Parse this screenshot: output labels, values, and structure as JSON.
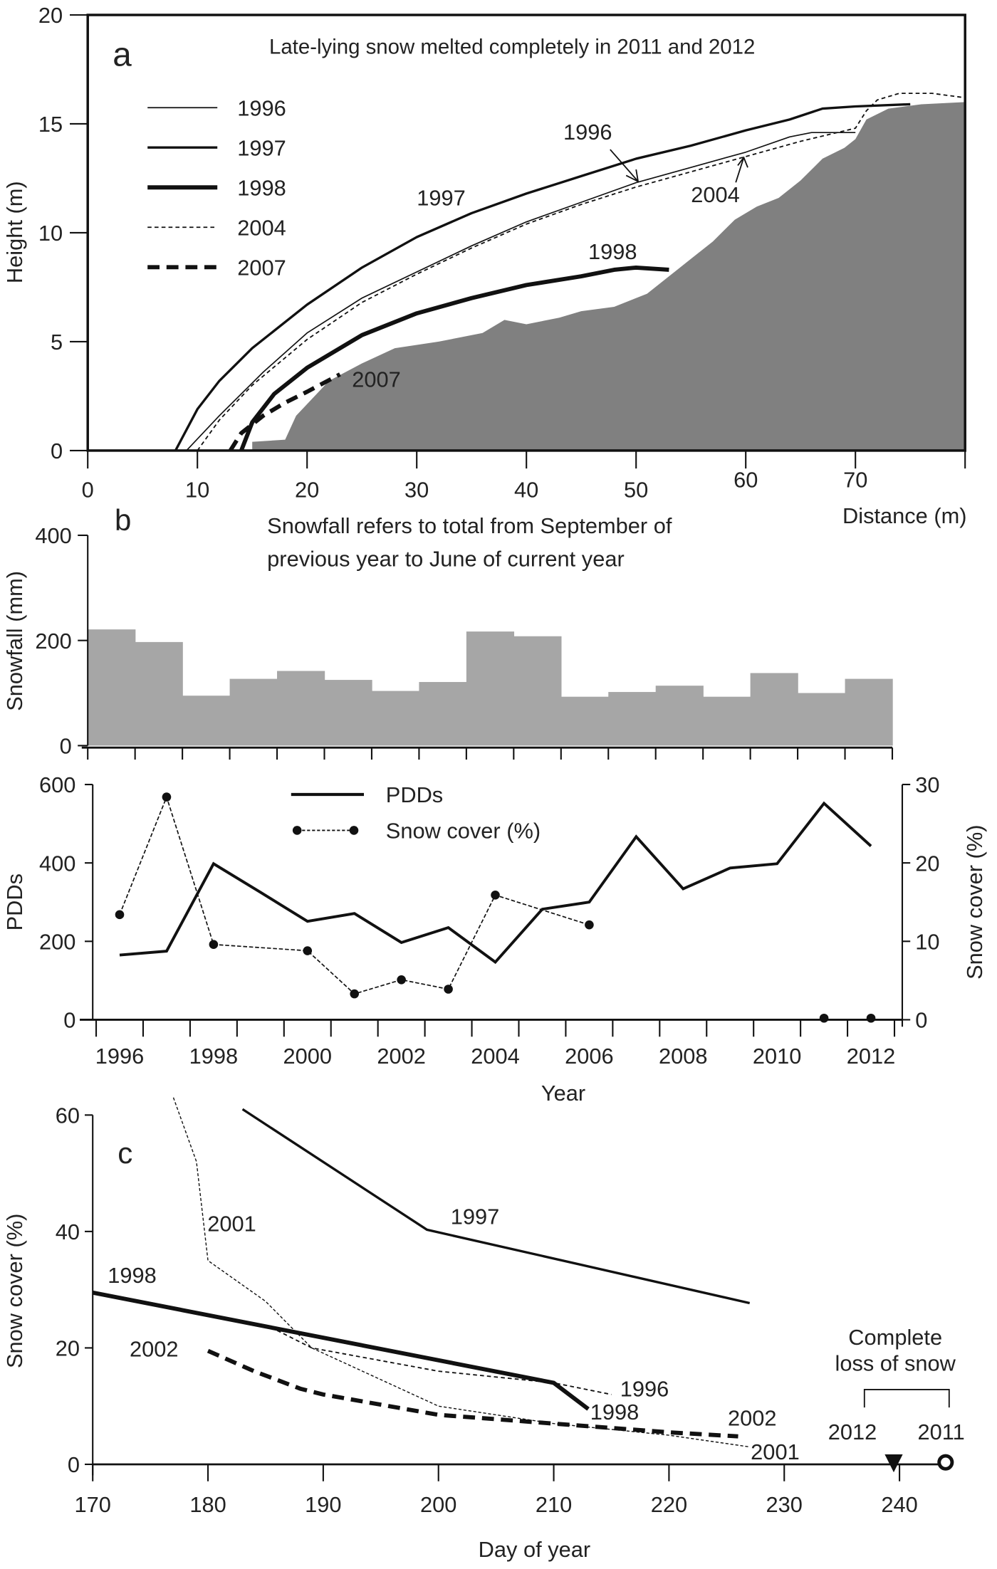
{
  "colors": {
    "ground": "#808080",
    "snowfall_bar": "#a6a6a6",
    "line": "#111111"
  },
  "chart_data": [
    {
      "type": "line",
      "panel_label": "a",
      "title": "Late-lying snow melted completely in 2011 and 2012",
      "xlabel": "Distance (m)",
      "ylabel": "Height (m)",
      "xlim": [
        0,
        80
      ],
      "ylim": [
        0,
        20
      ],
      "xticks": [
        "0",
        "10",
        "20",
        "30",
        "40",
        "50",
        "60",
        "70"
      ],
      "yticks": [
        "0",
        "5",
        "10",
        "15",
        "20"
      ],
      "legend_position": "top-left",
      "ground_profile": {
        "fill": "#808080",
        "points": [
          [
            15,
            0
          ],
          [
            15,
            0.4
          ],
          [
            18,
            0.5
          ],
          [
            19,
            1.6
          ],
          [
            22,
            3.2
          ],
          [
            25,
            4
          ],
          [
            28,
            4.7
          ],
          [
            32,
            5
          ],
          [
            36,
            5.4
          ],
          [
            38,
            6
          ],
          [
            40,
            5.8
          ],
          [
            43,
            6.1
          ],
          [
            45,
            6.4
          ],
          [
            48,
            6.6
          ],
          [
            51,
            7.2
          ],
          [
            53,
            8
          ],
          [
            55,
            8.8
          ],
          [
            57,
            9.6
          ],
          [
            59,
            10.6
          ],
          [
            61,
            11.2
          ],
          [
            63,
            11.6
          ],
          [
            65,
            12.4
          ],
          [
            67,
            13.4
          ],
          [
            69,
            13.9
          ],
          [
            70,
            14.3
          ],
          [
            71,
            15.2
          ],
          [
            73,
            15.7
          ],
          [
            76,
            15.9
          ],
          [
            80,
            16
          ],
          [
            80,
            0
          ]
        ]
      },
      "series": [
        {
          "name": "1996",
          "style": "thin",
          "points": [
            [
              9,
              0
            ],
            [
              12,
              1.6
            ],
            [
              16,
              3.6
            ],
            [
              20,
              5.4
            ],
            [
              25,
              7
            ],
            [
              30,
              8.2
            ],
            [
              35,
              9.4
            ],
            [
              40,
              10.5
            ],
            [
              45,
              11.4
            ],
            [
              50,
              12.3
            ],
            [
              55,
              13
            ],
            [
              60,
              13.7
            ],
            [
              64,
              14.4
            ],
            [
              66,
              14.6
            ],
            [
              70,
              14.6
            ]
          ]
        },
        {
          "name": "1997",
          "style": "solid",
          "points": [
            [
              8,
              0
            ],
            [
              10,
              1.9
            ],
            [
              12,
              3.2
            ],
            [
              15,
              4.7
            ],
            [
              20,
              6.7
            ],
            [
              25,
              8.4
            ],
            [
              30,
              9.8
            ],
            [
              35,
              10.9
            ],
            [
              40,
              11.8
            ],
            [
              45,
              12.6
            ],
            [
              50,
              13.4
            ],
            [
              55,
              14
            ],
            [
              60,
              14.7
            ],
            [
              64,
              15.2
            ],
            [
              67,
              15.7
            ],
            [
              70,
              15.8
            ],
            [
              75,
              15.9
            ]
          ]
        },
        {
          "name": "1998",
          "style": "thick",
          "points": [
            [
              14,
              0
            ],
            [
              15,
              1.3
            ],
            [
              17,
              2.6
            ],
            [
              20,
              3.8
            ],
            [
              25,
              5.3
            ],
            [
              30,
              6.3
            ],
            [
              35,
              7
            ],
            [
              40,
              7.6
            ],
            [
              45,
              8
            ],
            [
              48,
              8.3
            ],
            [
              50,
              8.4
            ],
            [
              53,
              8.3
            ]
          ]
        },
        {
          "name": "2004",
          "style": "dashed",
          "points": [
            [
              10,
              0
            ],
            [
              12,
              1.4
            ],
            [
              15,
              3
            ],
            [
              20,
              5.1
            ],
            [
              25,
              6.8
            ],
            [
              30,
              8.1
            ],
            [
              35,
              9.3
            ],
            [
              40,
              10.4
            ],
            [
              45,
              11.3
            ],
            [
              50,
              12.1
            ],
            [
              55,
              12.8
            ],
            [
              60,
              13.5
            ],
            [
              65,
              14.2
            ],
            [
              70,
              14.8
            ],
            [
              71,
              15.6
            ],
            [
              72,
              16.1
            ],
            [
              74,
              16.4
            ],
            [
              77,
              16.4
            ],
            [
              80,
              16.2
            ]
          ]
        },
        {
          "name": "2007",
          "style": "thick-dashed",
          "points": [
            [
              13,
              0
            ],
            [
              14,
              0.8
            ],
            [
              16,
              1.6
            ],
            [
              18,
              2.2
            ],
            [
              20,
              2.7
            ],
            [
              23,
              3.5
            ]
          ]
        }
      ],
      "annotations": [
        "1997",
        "1996",
        "2004",
        "1998",
        "2007"
      ]
    },
    {
      "type": "bar",
      "panel_label": "b",
      "note_line1": "Snowfall refers to total  from September of",
      "note_line2": "previous year to June of current year",
      "ylabel": "Snowfall (mm)",
      "ylim": [
        0,
        400
      ],
      "yticks": [
        "0",
        "200",
        "400"
      ],
      "categories": [
        1996,
        1997,
        1998,
        1999,
        2000,
        2001,
        2002,
        2003,
        2004,
        2005,
        2006,
        2007,
        2008,
        2009,
        2010,
        2011,
        2012
      ],
      "values": [
        221,
        197,
        95,
        127,
        142,
        125,
        104,
        121,
        217,
        208,
        93,
        102,
        114,
        93,
        138,
        100,
        127
      ]
    },
    {
      "type": "line",
      "xlabel": "Year",
      "ylabel": "PDDs",
      "ylabel_right": "Snow cover (%)",
      "ylim": [
        0,
        600
      ],
      "ylim_right": [
        0,
        30
      ],
      "yticks": [
        "0",
        "200",
        "400",
        "600"
      ],
      "yticks_right": [
        "0",
        "10",
        "20",
        "30"
      ],
      "xticks": [
        "1996",
        "1998",
        "2000",
        "2002",
        "2004",
        "2006",
        "2008",
        "2010",
        "2012"
      ],
      "legend_position": "top-center",
      "series": [
        {
          "name": "PDDs",
          "axis": "left",
          "style": "solid",
          "x": [
            1996,
            1997,
            1998,
            1999,
            2000,
            2001,
            2002,
            2003,
            2004,
            2005,
            2006,
            2007,
            2008,
            2009,
            2010,
            2011,
            2012
          ],
          "y": [
            165,
            175,
            398,
            325,
            251,
            271,
            197,
            235,
            147,
            282,
            300,
            467,
            334,
            387,
            398,
            552,
            443
          ]
        },
        {
          "name": "Snow cover (%)",
          "axis": "right",
          "style": "dashed-with-dots",
          "x": [
            1996,
            1997,
            1998,
            2000,
            2001,
            2002,
            2003,
            2004,
            2006,
            2011,
            2012
          ],
          "y": [
            13.4,
            28.4,
            9.6,
            8.8,
            3.3,
            5.1,
            3.9,
            15.9,
            12.1,
            0.2,
            0.2
          ],
          "connected_until_index": 8
        }
      ]
    },
    {
      "type": "line",
      "panel_label": "c",
      "xlabel": "Day of year",
      "ylabel": "Snow cover (%)",
      "xlim": [
        170,
        245
      ],
      "ylim": [
        0,
        60
      ],
      "xticks": [
        "170",
        "180",
        "190",
        "200",
        "210",
        "220",
        "230",
        "240"
      ],
      "yticks": [
        "0",
        "20",
        "40",
        "60"
      ],
      "series": [
        {
          "name": "1997",
          "style": "solid",
          "points": [
            [
              183,
              61
            ],
            [
              199,
              40.3
            ],
            [
              227,
              27.7
            ]
          ]
        },
        {
          "name": "2001",
          "style": "thin-dashed",
          "points": [
            [
              177,
              63
            ],
            [
              179,
              52
            ],
            [
              180,
              35
            ],
            [
              185,
              28
            ],
            [
              189,
              20
            ],
            [
              200,
              10
            ],
            [
              210,
              7
            ],
            [
              220,
              5
            ],
            [
              227,
              3
            ]
          ]
        },
        {
          "name": "1996",
          "style": "dashed",
          "points": [
            [
              186,
              23
            ],
            [
              189,
              20
            ],
            [
              200,
              16
            ],
            [
              210,
              14
            ],
            [
              215,
              12
            ]
          ]
        },
        {
          "name": "1998",
          "style": "thick",
          "points": [
            [
              170,
              29.5
            ],
            [
              210,
              14
            ],
            [
              213,
              9.5
            ]
          ]
        },
        {
          "name": "2002",
          "style": "thick-dashed",
          "points": [
            [
              180,
              19.5
            ],
            [
              184,
              16
            ],
            [
              188,
              13
            ],
            [
              190,
              12
            ],
            [
              200,
              8.5
            ],
            [
              210,
              7
            ],
            [
              220,
              5.5
            ],
            [
              226,
              4.8
            ]
          ]
        }
      ],
      "series_labels": [
        "1997",
        "2001",
        "1998",
        "2002",
        "1996",
        "1998",
        "2002",
        "2001"
      ],
      "complete_loss": {
        "title_line1": "Complete",
        "title_line2": "loss of snow",
        "markers": [
          {
            "year": "2012",
            "day": 239.5,
            "symbol": "filled-triangle-down"
          },
          {
            "year": "2011",
            "day": 244,
            "symbol": "open-circle"
          }
        ]
      }
    }
  ]
}
